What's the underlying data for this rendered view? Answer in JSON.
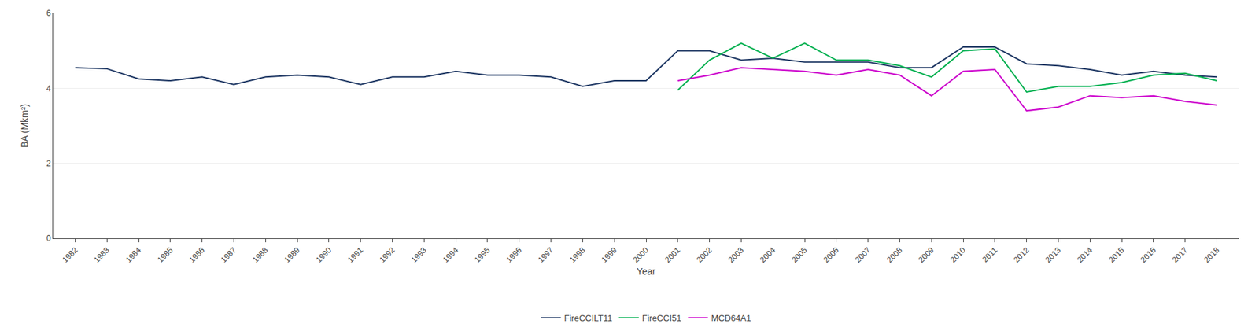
{
  "chart_data": {
    "type": "line",
    "xlabel": "Year",
    "ylabel": "BA (Mkm²)",
    "xlim": [
      1981.3,
      2018.7
    ],
    "xticks": [
      1982,
      1983,
      1984,
      1985,
      1986,
      1987,
      1988,
      1989,
      1990,
      1991,
      1992,
      1993,
      1994,
      1995,
      1996,
      1997,
      1998,
      1999,
      2000,
      2001,
      2002,
      2003,
      2004,
      2005,
      2006,
      2007,
      2008,
      2009,
      2010,
      2011,
      2012,
      2013,
      2014,
      2015,
      2016,
      2017,
      2018
    ],
    "ylim": [
      0,
      6
    ],
    "yticks": [
      0,
      2,
      4,
      6
    ],
    "grid": "y",
    "legend": "bottom",
    "series": [
      {
        "name": "FireCCILT11",
        "color": "#1f3864",
        "x": [
          1982,
          1983,
          1984,
          1985,
          1986,
          1987,
          1988,
          1989,
          1990,
          1991,
          1992,
          1993,
          1994,
          1995,
          1996,
          1997,
          1998,
          1999,
          2000,
          2001,
          2002,
          2003,
          2004,
          2005,
          2006,
          2007,
          2008,
          2009,
          2010,
          2011,
          2012,
          2013,
          2014,
          2015,
          2016,
          2017,
          2018
        ],
        "values": [
          4.55,
          4.52,
          4.25,
          4.2,
          4.3,
          4.1,
          4.3,
          4.35,
          4.3,
          4.1,
          4.3,
          4.3,
          4.45,
          4.35,
          4.35,
          4.3,
          4.05,
          4.2,
          4.2,
          5.0,
          5.0,
          4.75,
          4.8,
          4.7,
          4.7,
          4.7,
          4.55,
          4.55,
          5.1,
          5.1,
          4.65,
          4.6,
          4.5,
          4.35,
          4.45,
          4.35,
          4.3
        ]
      },
      {
        "name": "FireCCI51",
        "color": "#00b050",
        "x": [
          2001,
          2002,
          2003,
          2004,
          2005,
          2006,
          2007,
          2008,
          2009,
          2010,
          2011,
          2012,
          2013,
          2014,
          2015,
          2016,
          2017,
          2018
        ],
        "values": [
          3.95,
          4.75,
          5.2,
          4.8,
          5.2,
          4.75,
          4.75,
          4.6,
          4.3,
          5.0,
          5.05,
          3.9,
          4.05,
          4.05,
          4.15,
          4.35,
          4.4,
          4.2
        ]
      },
      {
        "name": "MCD64A1",
        "color": "#cc00cc",
        "x": [
          2001,
          2002,
          2003,
          2004,
          2005,
          2006,
          2007,
          2008,
          2009,
          2010,
          2011,
          2012,
          2013,
          2014,
          2015,
          2016,
          2017,
          2018
        ],
        "values": [
          4.2,
          4.35,
          4.55,
          4.5,
          4.45,
          4.35,
          4.5,
          4.35,
          3.8,
          4.45,
          4.5,
          3.4,
          3.5,
          3.8,
          3.75,
          3.8,
          3.65,
          3.55
        ]
      }
    ]
  }
}
